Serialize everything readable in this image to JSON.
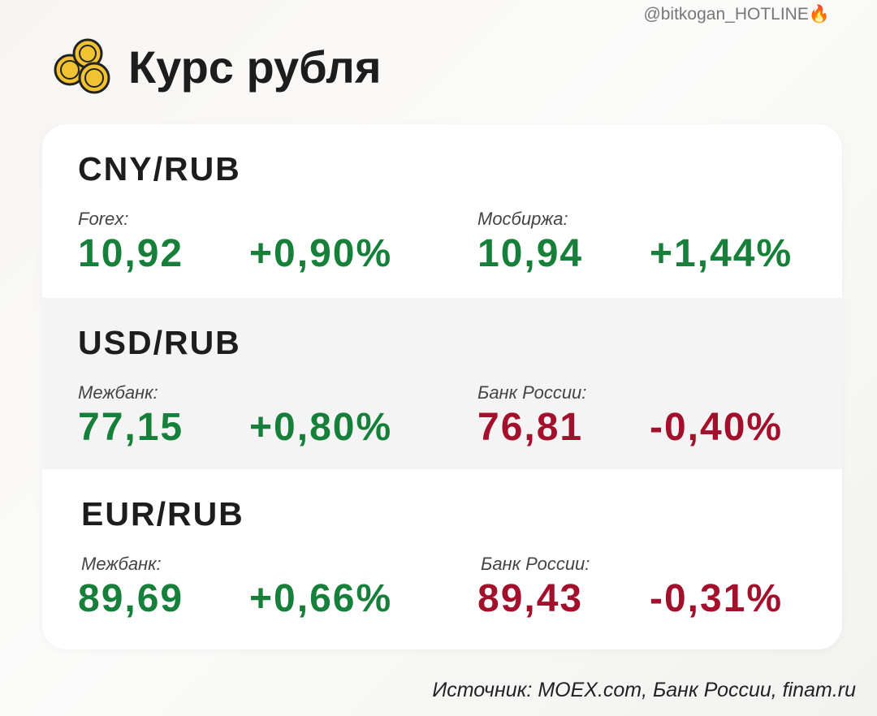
{
  "header": {
    "handle": "@bitkogan_HOTLINE🔥",
    "title": "Курс рубля"
  },
  "sections": [
    {
      "pair": "CNY/RUB",
      "left": {
        "label": "Forex:",
        "value": "10,92",
        "change": "+0,90%"
      },
      "right": {
        "label": "Мосбиржа:",
        "value": "10,94",
        "change": "+1,44%"
      }
    },
    {
      "pair": "USD/RUB",
      "left": {
        "label": "Межбанк:",
        "value": "77,15",
        "change": "+0,80%"
      },
      "right": {
        "label": "Банк России:",
        "value": "76,81",
        "change": "-0,40%"
      }
    },
    {
      "pair": "EUR/RUB",
      "left": {
        "label": "Межбанк:",
        "value": "89,69",
        "change": "+0,66%"
      },
      "right": {
        "label": "Банк России:",
        "value": "89,43",
        "change": "-0,31%"
      }
    }
  ],
  "footer": {
    "source": "Источник: MOEX.com, Банк России, finam.ru"
  }
}
